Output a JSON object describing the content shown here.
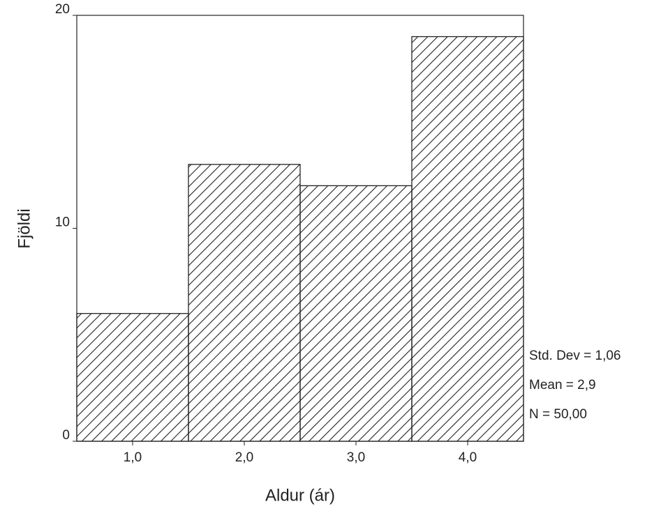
{
  "chart_data": {
    "type": "histogram",
    "bins": [
      0.5,
      1.5,
      2.5,
      3.5,
      4.5
    ],
    "values": [
      6,
      13,
      12,
      19
    ],
    "xlabel": "Aldur (ár)",
    "ylabel": "Fjöldi",
    "xlim": [
      0.5,
      4.5
    ],
    "ylim": [
      0,
      20
    ],
    "xticks": [
      {
        "value": 1,
        "label": "1,0"
      },
      {
        "value": 2,
        "label": "2,0"
      },
      {
        "value": 3,
        "label": "3,0"
      },
      {
        "value": 4,
        "label": "4,0"
      }
    ],
    "yticks": [
      0,
      10,
      20
    ],
    "grid": false,
    "color": "#222222",
    "annotations": [
      "Std. Dev = 1,06",
      "Mean = 2,9",
      "N = 50,00"
    ]
  }
}
